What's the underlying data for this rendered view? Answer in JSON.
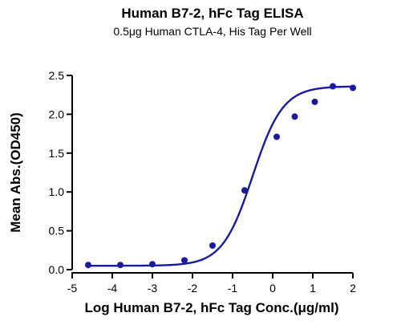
{
  "chart_data": {
    "type": "scatter",
    "title": "Human B7-2, hFc Tag ELISA",
    "subtitle": "0.5μg Human CTLA-4, His Tag Per Well",
    "xlabel": "Log Human B7-2, hFc Tag Conc.(μg/ml)",
    "ylabel": "Mean Abs.(OD450)",
    "xlim": [
      -5,
      2
    ],
    "ylim": [
      0,
      2.5
    ],
    "x_ticks": [
      "-5",
      "-4",
      "-3",
      "-2",
      "-1",
      "0",
      "1",
      "2"
    ],
    "y_ticks": [
      "0.0",
      "0.5",
      "1.0",
      "1.5",
      "2.0",
      "2.5"
    ],
    "grid": false,
    "legend": "none",
    "series": [
      {
        "x": [
          -4.6,
          -3.8,
          -3.0,
          -2.2,
          -1.5,
          -0.7,
          0.1,
          0.55,
          1.05,
          1.5,
          2.0
        ],
        "y": [
          0.06,
          0.06,
          0.07,
          0.12,
          0.31,
          1.02,
          1.71,
          1.97,
          2.16,
          2.36,
          2.34
        ],
        "color": "#1a1a9c"
      }
    ],
    "fit_curve": {
      "model": "4PL",
      "bottom": 0.05,
      "top": 2.36,
      "log_ec50": -0.5,
      "hill": 1.15,
      "x_range": [
        -4.6,
        2.0
      ],
      "color": "#1a1a9c"
    }
  }
}
